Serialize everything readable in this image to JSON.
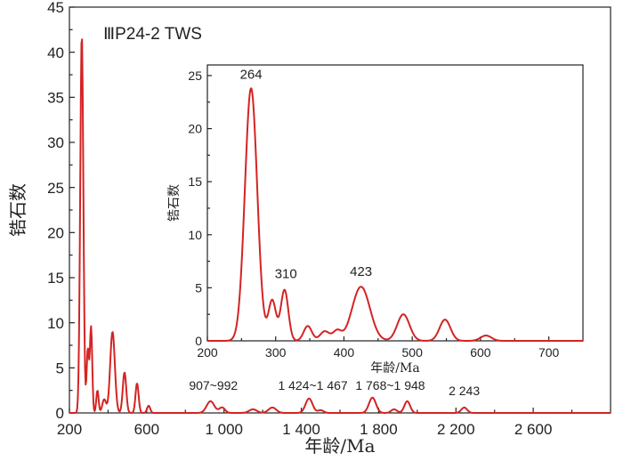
{
  "chart_data": [
    {
      "type": "line",
      "name": "main",
      "title": "ⅢP24-2 TWS",
      "xlabel": "年龄/Ma",
      "ylabel": "锆石数",
      "xlim": [
        200,
        3000
      ],
      "ylim": [
        0,
        45
      ],
      "xticks": [
        200,
        600,
        1000,
        1400,
        1800,
        2200,
        2600
      ],
      "xtick_labels": [
        "200",
        "600",
        "1 000",
        "1 400",
        "1 800",
        "2 200",
        "2 600"
      ],
      "yticks": [
        0,
        5,
        10,
        15,
        20,
        25,
        30,
        35,
        40,
        45
      ],
      "ytick_labels": [
        "0",
        "5",
        "10",
        "15",
        "20",
        "25",
        "30",
        "35",
        "40",
        "45"
      ],
      "line_color": "#d42323",
      "peaks": [
        {
          "x": 264,
          "amp": 42,
          "sigma": 8
        },
        {
          "x": 295,
          "amp": 7,
          "sigma": 6
        },
        {
          "x": 312,
          "amp": 9.5,
          "sigma": 6
        },
        {
          "x": 345,
          "amp": 2.5,
          "sigma": 6
        },
        {
          "x": 380,
          "amp": 1.5,
          "sigma": 10
        },
        {
          "x": 423,
          "amp": 9,
          "sigma": 12
        },
        {
          "x": 485,
          "amp": 4.5,
          "sigma": 9
        },
        {
          "x": 550,
          "amp": 3.3,
          "sigma": 8
        },
        {
          "x": 610,
          "amp": 0.8,
          "sigma": 8
        },
        {
          "x": 930,
          "amp": 1.3,
          "sigma": 20
        },
        {
          "x": 990,
          "amp": 0.6,
          "sigma": 15
        },
        {
          "x": 1150,
          "amp": 0.4,
          "sigma": 20
        },
        {
          "x": 1250,
          "amp": 0.6,
          "sigma": 20
        },
        {
          "x": 1440,
          "amp": 1.6,
          "sigma": 18
        },
        {
          "x": 1500,
          "amp": 0.3,
          "sigma": 15
        },
        {
          "x": 1768,
          "amp": 1.7,
          "sigma": 18
        },
        {
          "x": 1948,
          "amp": 1.3,
          "sigma": 15
        },
        {
          "x": 1880,
          "amp": 0.4,
          "sigma": 15
        },
        {
          "x": 2243,
          "amp": 0.6,
          "sigma": 15
        }
      ],
      "annotations": [
        {
          "text": "907~992",
          "x": 945,
          "y": 1.8
        },
        {
          "text": "1 424~1 467",
          "x": 1460,
          "y": 1.8
        },
        {
          "text": "1 768~1 948",
          "x": 1860,
          "y": 1.8
        },
        {
          "text": "2 243",
          "x": 2243,
          "y": 1.2
        }
      ]
    },
    {
      "type": "line",
      "name": "inset",
      "title": "",
      "xlabel": "年龄/Ma",
      "ylabel": "锆石数",
      "xlim": [
        200,
        750
      ],
      "ylim": [
        0,
        26
      ],
      "xticks": [
        200,
        300,
        400,
        500,
        600,
        700
      ],
      "xtick_labels": [
        "200",
        "300",
        "400",
        "500",
        "600",
        "700"
      ],
      "yticks": [
        0,
        5,
        10,
        15,
        20,
        25
      ],
      "ytick_labels": [
        "0",
        "5",
        "10",
        "15",
        "20",
        "25"
      ],
      "line_color": "#d42323",
      "peaks": [
        {
          "x": 264,
          "amp": 23.8,
          "sigma": 9
        },
        {
          "x": 295,
          "amp": 3.8,
          "sigma": 5.5
        },
        {
          "x": 313,
          "amp": 4.8,
          "sigma": 5.5
        },
        {
          "x": 347,
          "amp": 1.4,
          "sigma": 6
        },
        {
          "x": 372,
          "amp": 0.9,
          "sigma": 7
        },
        {
          "x": 390,
          "amp": 0.9,
          "sigma": 6
        },
        {
          "x": 425,
          "amp": 5.1,
          "sigma": 13
        },
        {
          "x": 487,
          "amp": 2.5,
          "sigma": 9
        },
        {
          "x": 548,
          "amp": 2.0,
          "sigma": 8
        },
        {
          "x": 608,
          "amp": 0.5,
          "sigma": 8
        }
      ],
      "annotations": [
        {
          "text": "264",
          "x": 264,
          "y": 24.2
        },
        {
          "text": "310",
          "x": 315,
          "y": 5.4
        },
        {
          "text": "423",
          "x": 425,
          "y": 5.6
        }
      ]
    }
  ]
}
